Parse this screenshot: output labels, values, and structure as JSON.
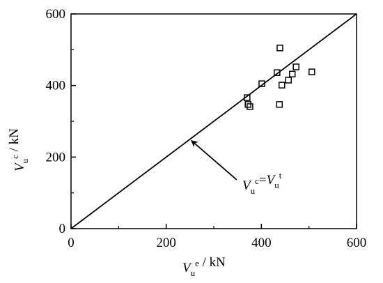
{
  "chart_data": {
    "type": "scatter",
    "x_label": {
      "symbol": "V",
      "sub": "u",
      "sup": "e",
      "unit": " / kN"
    },
    "y_label": {
      "symbol": "V",
      "sub": "u",
      "sup": "c",
      "unit": " / kN"
    },
    "x": [
      370,
      372,
      376,
      401,
      433,
      439,
      438,
      443,
      457,
      465,
      473,
      506
    ],
    "values": [
      366,
      347,
      341,
      405,
      436,
      505,
      347,
      401,
      415,
      432,
      452,
      438
    ],
    "color": "#000000",
    "xlim": [
      0,
      600
    ],
    "ylim": [
      0,
      600
    ],
    "xticks": [
      0,
      200,
      400,
      600
    ],
    "yticks": [
      0,
      200,
      400,
      600
    ],
    "xminor_ticks": [
      100,
      300,
      500
    ],
    "yminor_ticks": [
      100,
      300,
      500
    ],
    "reference_line": {
      "x": [
        0,
        600
      ],
      "y": [
        0,
        600
      ]
    },
    "annotation": {
      "left": {
        "symbol": "V",
        "sub": "u",
        "sup": "c"
      },
      "eq": "=",
      "right": {
        "symbol": "V",
        "sub": "u",
        "sup": "t"
      }
    },
    "grid": false
  }
}
